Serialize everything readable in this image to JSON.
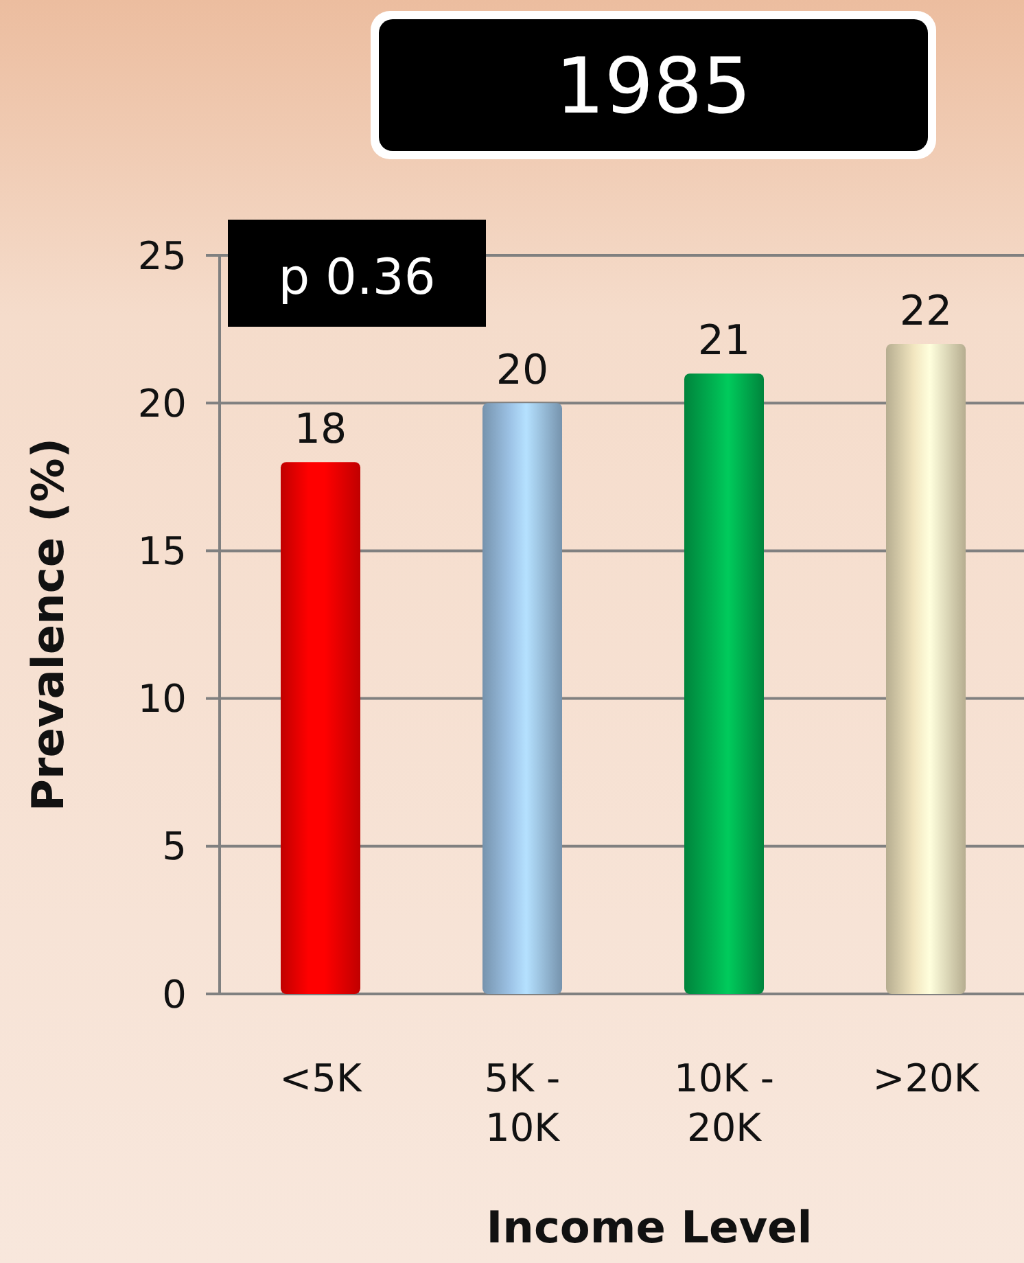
{
  "chart_data": {
    "type": "bar",
    "title": "1985",
    "xlabel": "Income Level",
    "ylabel": "Prevalence (%)",
    "categories": [
      "<5K",
      "5K - 10K",
      "10K - 20K",
      ">20K"
    ],
    "values": [
      18,
      20,
      21,
      22
    ],
    "colors": [
      "#ff0000",
      "#9dc3e6",
      "#00b050",
      "#f2e6c0"
    ],
    "ylim": [
      0,
      25
    ],
    "yticks": [
      0,
      5,
      10,
      15,
      20,
      25
    ],
    "grid": "y",
    "data_labels": true,
    "annotations": [
      "p 0.36"
    ]
  }
}
